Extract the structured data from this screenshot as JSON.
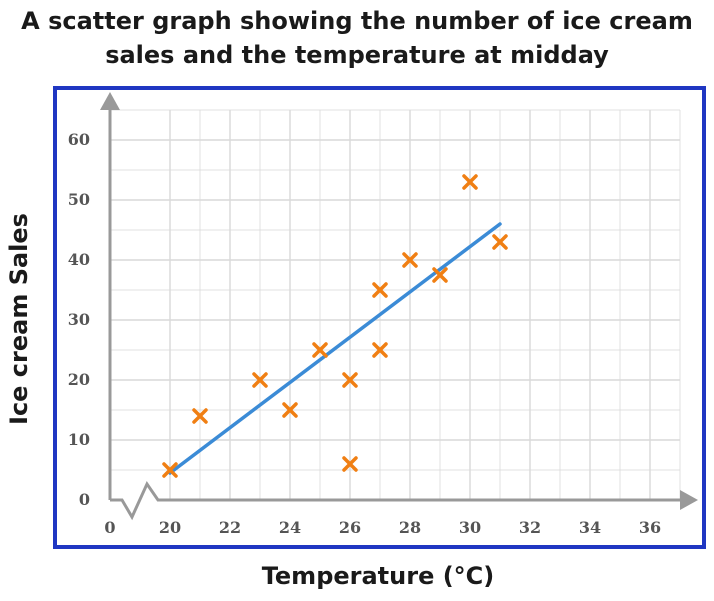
{
  "chart_data": {
    "type": "scatter",
    "title_lines": [
      "A scatter graph showing the number of ice cream",
      "sales and the temperature at midday"
    ],
    "xlabel": "Temperature (°C)",
    "ylabel": "Ice cream Sales",
    "x_ticks": [
      "0",
      "20",
      "22",
      "24",
      "26",
      "28",
      "30",
      "32",
      "34",
      "36"
    ],
    "y_ticks": [
      "0",
      "10",
      "20",
      "30",
      "40",
      "50",
      "60"
    ],
    "xlim": [
      20,
      37
    ],
    "ylim": [
      0,
      65
    ],
    "x_axis_break": true,
    "grid": true,
    "points": [
      {
        "x": 20,
        "y": 5
      },
      {
        "x": 21,
        "y": 14
      },
      {
        "x": 23,
        "y": 20
      },
      {
        "x": 24,
        "y": 15
      },
      {
        "x": 25,
        "y": 25
      },
      {
        "x": 26,
        "y": 20
      },
      {
        "x": 26,
        "y": 6
      },
      {
        "x": 27,
        "y": 35
      },
      {
        "x": 27,
        "y": 25
      },
      {
        "x": 28,
        "y": 40
      },
      {
        "x": 29,
        "y": 37.5
      },
      {
        "x": 30,
        "y": 53
      },
      {
        "x": 31,
        "y": 43
      }
    ],
    "trend_line": {
      "start": [
        20,
        4.5
      ],
      "end": [
        31,
        46
      ]
    },
    "colors": {
      "marker": "#f07f13",
      "trend": "#3b8bd6",
      "frame": "#1f36c2",
      "grid": "#d9d9d9",
      "axis": "#999999"
    }
  }
}
